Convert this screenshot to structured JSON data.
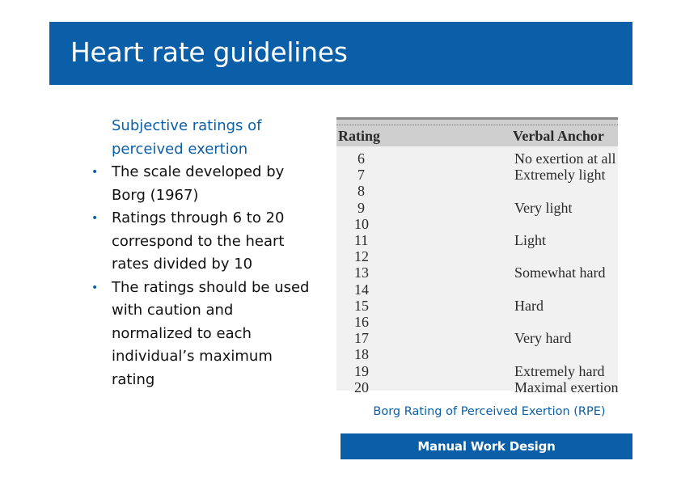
{
  "title": "Heart rate guidelines",
  "body": {
    "lead": "Subjective ratings of perceived exertion",
    "bullets": [
      "The scale developed by Borg (1967)",
      "Ratings through 6 to 20 correspond to the heart rates divided by 10",
      "The ratings should be used with caution and normalized to each individual’s maximum rating"
    ]
  },
  "table": {
    "headers": {
      "rating": "Rating",
      "anchor": "Verbal Anchor"
    },
    "ratings": [
      "6",
      "7",
      "8",
      "9",
      "10",
      "11",
      "12",
      "13",
      "14",
      "15",
      "16",
      "17",
      "18",
      "19",
      "20"
    ],
    "anchors": [
      {
        "rating": "6",
        "text": "No exertion at all"
      },
      {
        "rating": "7",
        "text": "Extremely light"
      },
      {
        "rating": "9",
        "text": "Very light"
      },
      {
        "rating": "11",
        "text": "Light"
      },
      {
        "rating": "13",
        "text": "Somewhat hard"
      },
      {
        "rating": "15",
        "text": "Hard"
      },
      {
        "rating": "17",
        "text": "Very hard"
      },
      {
        "rating": "19",
        "text": "Extremely hard"
      },
      {
        "rating": "20",
        "text": "Maximal exertion"
      }
    ]
  },
  "caption": "Borg Rating of Perceived Exertion (RPE)",
  "footer": "Manual Work Design",
  "colors": {
    "accent": "#0b5fa8",
    "table_bg": "#f1f1f1",
    "table_header": "#cfcfcf"
  }
}
